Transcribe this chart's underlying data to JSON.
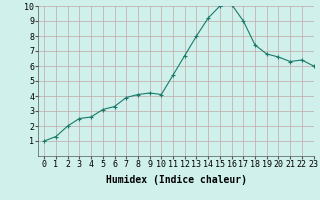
{
  "x": [
    0,
    1,
    2,
    3,
    4,
    5,
    6,
    7,
    8,
    9,
    10,
    11,
    12,
    13,
    14,
    15,
    16,
    17,
    18,
    19,
    20,
    21,
    22,
    23
  ],
  "y": [
    1.0,
    1.3,
    2.0,
    2.5,
    2.6,
    3.1,
    3.3,
    3.9,
    4.1,
    4.2,
    4.1,
    5.4,
    6.7,
    8.0,
    9.2,
    10.0,
    10.1,
    9.0,
    7.4,
    6.8,
    6.6,
    6.3,
    6.4,
    6.0
  ],
  "line_color": "#1a7a6a",
  "marker": "+",
  "marker_size": 3,
  "bg_color": "#cff0eb",
  "grid_color": "#c0a8a8",
  "xlabel": "Humidex (Indice chaleur)",
  "xlim": [
    -0.5,
    23
  ],
  "ylim": [
    0,
    10
  ],
  "xticks": [
    0,
    1,
    2,
    3,
    4,
    5,
    6,
    7,
    8,
    9,
    10,
    11,
    12,
    13,
    14,
    15,
    16,
    17,
    18,
    19,
    20,
    21,
    22,
    23
  ],
  "yticks": [
    1,
    2,
    3,
    4,
    5,
    6,
    7,
    8,
    9,
    10
  ],
  "tick_fontsize": 6,
  "xlabel_fontsize": 7
}
